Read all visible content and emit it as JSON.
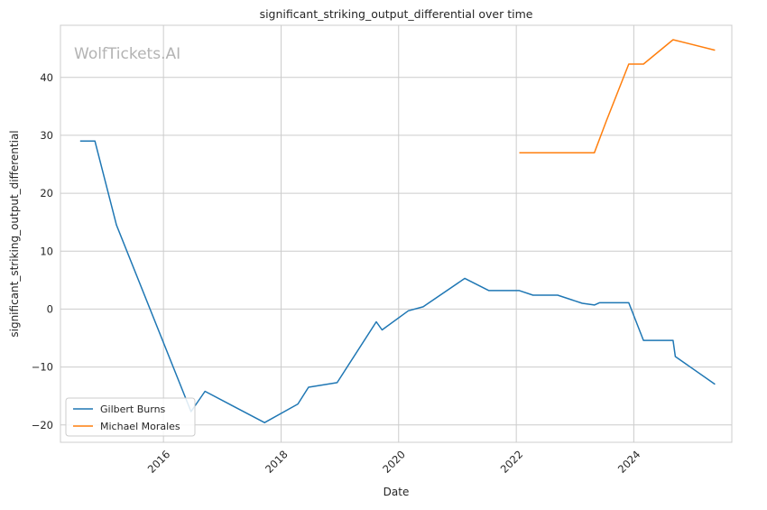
{
  "chart_data": {
    "type": "line",
    "title": "significant_striking_output_differential over time",
    "xlabel": "Date",
    "ylabel": "significant_striking_output_differential",
    "watermark": "WolfTickets.AI",
    "x_is_date": true,
    "xlim": [
      "2014-04-01",
      "2025-09-01"
    ],
    "ylim": [
      -23,
      49
    ],
    "x_ticks": [
      "2016-01-01",
      "2018-01-01",
      "2020-01-01",
      "2022-01-01",
      "2024-01-01"
    ],
    "x_tick_labels": [
      "2016",
      "2018",
      "2020",
      "2022",
      "2024"
    ],
    "y_ticks": [
      -20,
      -10,
      0,
      10,
      20,
      30,
      40
    ],
    "y_tick_labels": [
      "−20",
      "−10",
      "0",
      "10",
      "20",
      "30",
      "40"
    ],
    "grid": true,
    "legend_position": "lower-left",
    "series": [
      {
        "name": "Gilbert Burns",
        "color": "#1f77b4",
        "points": [
          [
            "2014-08-01",
            29.0
          ],
          [
            "2014-11-01",
            29.0
          ],
          [
            "2015-03-15",
            14.5
          ],
          [
            "2016-06-20",
            -17.7
          ],
          [
            "2016-09-15",
            -14.2
          ],
          [
            "2017-09-20",
            -19.6
          ],
          [
            "2018-04-15",
            -16.4
          ],
          [
            "2018-06-20",
            -13.5
          ],
          [
            "2018-12-15",
            -12.7
          ],
          [
            "2019-08-15",
            -2.2
          ],
          [
            "2019-09-20",
            -3.6
          ],
          [
            "2020-03-01",
            -0.3
          ],
          [
            "2020-06-01",
            0.4
          ],
          [
            "2021-02-15",
            5.3
          ],
          [
            "2021-07-15",
            3.2
          ],
          [
            "2022-01-20",
            3.2
          ],
          [
            "2022-04-15",
            2.4
          ],
          [
            "2022-09-15",
            2.4
          ],
          [
            "2023-02-15",
            1.0
          ],
          [
            "2023-05-01",
            0.7
          ],
          [
            "2023-06-01",
            1.1
          ],
          [
            "2023-12-01",
            1.1
          ],
          [
            "2024-03-01",
            -5.4
          ],
          [
            "2024-09-01",
            -5.4
          ],
          [
            "2024-09-15",
            -8.2
          ],
          [
            "2025-05-20",
            -13.0
          ]
        ]
      },
      {
        "name": "Michael Morales",
        "color": "#ff7f0e",
        "points": [
          [
            "2022-01-20",
            27.0
          ],
          [
            "2023-05-01",
            27.0
          ],
          [
            "2023-07-15",
            32.5
          ],
          [
            "2023-12-01",
            42.3
          ],
          [
            "2024-03-01",
            42.3
          ],
          [
            "2024-09-01",
            46.5
          ],
          [
            "2025-05-20",
            44.7
          ]
        ]
      }
    ]
  }
}
